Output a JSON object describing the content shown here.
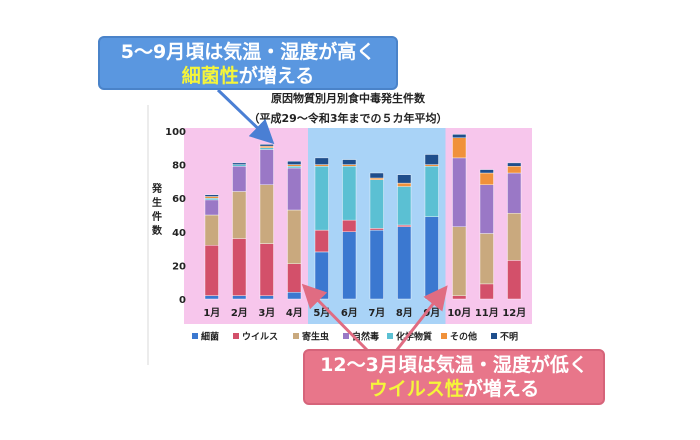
{
  "callouts": {
    "top": {
      "line1": "5〜9月頃は気温・湿度が高く",
      "line2_highlight": "細菌性",
      "line2_rest": "が増える"
    },
    "bottom": {
      "line1": "12〜3月頃は気温・湿度が低く",
      "line2_highlight": "ウイルス性",
      "line2_rest": "が増える"
    }
  },
  "colors": {
    "bacteria": "#3b78d0",
    "virus": "#d3506a",
    "parasite": "#c9a97e",
    "natural": "#9a78c6",
    "chemical": "#5bc0d3",
    "other": "#f0913a",
    "unknown": "#1f4e8c",
    "pink_band": "#f7c6ec",
    "blue_band": "#a9d3f7",
    "callout_top": "#5a97e0",
    "callout_bottom": "#e8768a",
    "highlight_text": "#f5f53a"
  },
  "chart_data": {
    "type": "bar",
    "stacked": true,
    "title": "原因物質別月別食中毒発生件数",
    "subtitle": "（平成29〜令和3年までの５カ年平均）",
    "ylabel": "発生件数",
    "ylim": [
      0,
      100
    ],
    "yticks": [
      0,
      20,
      40,
      60,
      80,
      100
    ],
    "grid": false,
    "legend_position": "bottom",
    "categories": [
      "1月",
      "2月",
      "3月",
      "4月",
      "5月",
      "6月",
      "7月",
      "8月",
      "9月",
      "10月",
      "11月",
      "12月"
    ],
    "series": [
      {
        "name": "細菌",
        "color_key": "bacteria",
        "values": [
          2,
          2,
          2,
          4,
          28,
          40,
          41,
          43,
          49,
          0,
          0,
          0
        ]
      },
      {
        "name": "ウイルス",
        "color_key": "virus",
        "values": [
          30,
          34,
          31,
          17,
          13,
          7,
          1,
          1,
          0,
          2,
          9,
          23
        ]
      },
      {
        "name": "寄生虫",
        "color_key": "parasite",
        "values": [
          18,
          28,
          35,
          32,
          0,
          0,
          0,
          0,
          0,
          41,
          30,
          28
        ]
      },
      {
        "name": "自然毒",
        "color_key": "natural",
        "values": [
          9,
          15,
          21,
          25,
          0,
          0,
          0,
          0,
          0,
          41,
          29,
          24
        ]
      },
      {
        "name": "化学物質",
        "color_key": "chemical",
        "values": [
          1,
          1,
          1,
          1,
          38,
          32,
          29,
          23,
          30,
          0,
          0,
          0
        ]
      },
      {
        "name": "その他",
        "color_key": "other",
        "values": [
          1,
          0,
          1,
          1,
          1,
          1,
          1,
          2,
          1,
          12,
          7,
          4
        ]
      },
      {
        "name": "不明",
        "color_key": "unknown",
        "values": [
          1,
          1,
          1,
          2,
          4,
          3,
          3,
          5,
          6,
          2,
          2,
          2
        ]
      }
    ]
  }
}
